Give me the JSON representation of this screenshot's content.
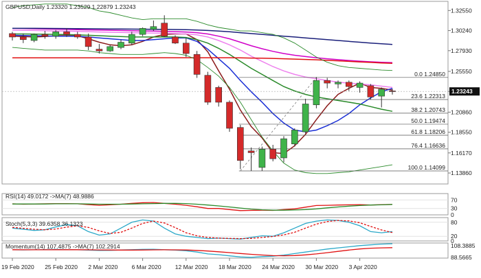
{
  "header": {
    "main": "GBPUSD,Daily  1.23320 1.23529 1.22879 1.23243",
    "rsi": "RSI(14) 49.0172  ->MA(7) 48.9886",
    "stoch": "Stoch(5,3,3) 39.6358 36.1323",
    "momentum": "Momentum(14) 107.4875  ->MA(7) 102.2914"
  },
  "colors": {
    "bull": "#3fb34a",
    "bear": "#d42a2a",
    "sma5": "#8b1a1a",
    "sma10": "#1a2fd6",
    "sma20": "#2a8a2a",
    "sma30": "#ee82ee",
    "sma55": "#d000c8",
    "sma100": "#1a1f7a",
    "sma200": "#e01010",
    "bb": "#2a8a2a",
    "accent": "#e00000"
  },
  "chart_data": [
    {
      "type": "candlestick",
      "title": "GBPUSD,Daily",
      "ylim": [
        1.126,
        1.336
      ],
      "y_ticks": [
        "1.32550",
        "1.30240",
        "1.27930",
        "1.25550",
        "1.23243",
        "1.20860",
        "1.18550",
        "1.16170",
        "1.13860"
      ],
      "x_ticks": [
        "19 Feb 2020",
        "25 Feb 2020",
        "2 Mar 2020",
        "6 Mar 2020",
        "12 Mar 2020",
        "18 Mar 2020",
        "24 Mar 2020",
        "30 Mar 2020",
        "3 Apr 2020"
      ],
      "last_price": "1.23243",
      "candles": [
        {
          "o": 1.299,
          "h": 1.301,
          "l": 1.291,
          "c": 1.295
        },
        {
          "o": 1.295,
          "h": 1.299,
          "l": 1.288,
          "c": 1.292
        },
        {
          "o": 1.291,
          "h": 1.299,
          "l": 1.289,
          "c": 1.298
        },
        {
          "o": 1.298,
          "h": 1.302,
          "l": 1.293,
          "c": 1.296
        },
        {
          "o": 1.296,
          "h": 1.303,
          "l": 1.293,
          "c": 1.301
        },
        {
          "o": 1.301,
          "h": 1.305,
          "l": 1.295,
          "c": 1.298
        },
        {
          "o": 1.298,
          "h": 1.301,
          "l": 1.293,
          "c": 1.295
        },
        {
          "o": 1.295,
          "h": 1.299,
          "l": 1.28,
          "c": 1.284
        },
        {
          "o": 1.281,
          "h": 1.287,
          "l": 1.276,
          "c": 1.279
        },
        {
          "o": 1.279,
          "h": 1.286,
          "l": 1.278,
          "c": 1.284
        },
        {
          "o": 1.283,
          "h": 1.292,
          "l": 1.281,
          "c": 1.289
        },
        {
          "o": 1.288,
          "h": 1.301,
          "l": 1.286,
          "c": 1.298
        },
        {
          "o": 1.298,
          "h": 1.306,
          "l": 1.296,
          "c": 1.305
        },
        {
          "o": 1.304,
          "h": 1.314,
          "l": 1.302,
          "c": 1.307
        },
        {
          "o": 1.311,
          "h": 1.32,
          "l": 1.295,
          "c": 1.296
        },
        {
          "o": 1.295,
          "h": 1.297,
          "l": 1.287,
          "c": 1.288
        },
        {
          "o": 1.288,
          "h": 1.294,
          "l": 1.272,
          "c": 1.276
        },
        {
          "o": 1.275,
          "h": 1.279,
          "l": 1.248,
          "c": 1.252
        },
        {
          "o": 1.251,
          "h": 1.255,
          "l": 1.217,
          "c": 1.22
        },
        {
          "o": 1.237,
          "h": 1.239,
          "l": 1.215,
          "c": 1.22
        },
        {
          "o": 1.22,
          "h": 1.222,
          "l": 1.186,
          "c": 1.19
        },
        {
          "o": 1.191,
          "h": 1.194,
          "l": 1.143,
          "c": 1.153
        },
        {
          "o": 1.164,
          "h": 1.168,
          "l": 1.141,
          "c": 1.162
        },
        {
          "o": 1.145,
          "h": 1.169,
          "l": 1.141,
          "c": 1.166
        },
        {
          "o": 1.166,
          "h": 1.171,
          "l": 1.152,
          "c": 1.155
        },
        {
          "o": 1.156,
          "h": 1.181,
          "l": 1.151,
          "c": 1.178
        },
        {
          "o": 1.172,
          "h": 1.19,
          "l": 1.169,
          "c": 1.188
        },
        {
          "o": 1.186,
          "h": 1.224,
          "l": 1.184,
          "c": 1.218
        },
        {
          "o": 1.217,
          "h": 1.249,
          "l": 1.213,
          "c": 1.245
        },
        {
          "o": 1.245,
          "h": 1.248,
          "l": 1.236,
          "c": 1.242
        },
        {
          "o": 1.241,
          "h": 1.245,
          "l": 1.236,
          "c": 1.243
        },
        {
          "o": 1.243,
          "h": 1.245,
          "l": 1.233,
          "c": 1.238
        },
        {
          "o": 1.237,
          "h": 1.244,
          "l": 1.231,
          "c": 1.242
        },
        {
          "o": 1.239,
          "h": 1.241,
          "l": 1.223,
          "c": 1.226
        },
        {
          "o": 1.227,
          "h": 1.237,
          "l": 1.214,
          "c": 1.235
        },
        {
          "o": 1.233,
          "h": 1.2353,
          "l": 1.2288,
          "c": 1.2324
        }
      ],
      "moving_averages": [
        {
          "name": "SMA5",
          "color": "#8b1a1a",
          "values": [
            1.296,
            1.2955,
            1.295,
            1.2955,
            1.2965,
            1.2965,
            1.2965,
            1.293,
            1.289,
            1.286,
            1.285,
            1.286,
            1.29,
            1.295,
            1.298,
            1.2985,
            1.2985,
            1.292,
            1.278,
            1.256,
            1.235,
            1.211,
            1.192,
            1.179,
            1.162,
            1.161,
            1.17,
            1.183,
            1.2,
            1.216,
            1.229,
            1.236,
            1.242,
            1.237,
            1.236,
            1.234
          ]
        },
        {
          "name": "SMA10",
          "color": "#1a2fd6",
          "values": [
            1.297,
            1.2968,
            1.2965,
            1.2962,
            1.296,
            1.296,
            1.2958,
            1.295,
            1.294,
            1.293,
            1.292,
            1.291,
            1.291,
            1.292,
            1.293,
            1.294,
            1.294,
            1.29,
            1.281,
            1.27,
            1.259,
            1.245,
            1.232,
            1.22,
            1.207,
            1.196,
            1.188,
            1.186,
            1.188,
            1.193,
            1.199,
            1.207,
            1.217,
            1.225,
            1.232,
            1.236
          ]
        },
        {
          "name": "SMA20",
          "color": "#2a8a2a",
          "values": [
            1.2985,
            1.2985,
            1.2984,
            1.2982,
            1.298,
            1.2978,
            1.2975,
            1.297,
            1.2965,
            1.296,
            1.2955,
            1.295,
            1.295,
            1.295,
            1.2952,
            1.295,
            1.2945,
            1.292,
            1.288,
            1.282,
            1.275,
            1.267,
            1.259,
            1.252,
            1.245,
            1.238,
            1.233,
            1.229,
            1.226,
            1.224,
            1.222,
            1.22,
            1.218,
            1.215,
            1.212,
            1.2095
          ]
        },
        {
          "name": "SMA30",
          "color": "#ee82ee",
          "values": [
            1.303,
            1.3028,
            1.3025,
            1.3022,
            1.302,
            1.3018,
            1.3015,
            1.3012,
            1.3008,
            1.3005,
            1.3002,
            1.3,
            1.2998,
            1.2996,
            1.2994,
            1.299,
            1.2985,
            1.2975,
            1.295,
            1.291,
            1.286,
            1.28,
            1.273,
            1.267,
            1.261,
            1.256,
            1.252,
            1.249,
            1.247,
            1.245,
            1.243,
            1.242,
            1.241,
            1.24,
            1.2385,
            1.237
          ]
        },
        {
          "name": "SMA55",
          "color": "#d000c8",
          "values": [
            1.305,
            1.3048,
            1.3045,
            1.3042,
            1.304,
            1.3038,
            1.3035,
            1.3032,
            1.303,
            1.3028,
            1.3025,
            1.3022,
            1.302,
            1.3018,
            1.3015,
            1.3012,
            1.3008,
            1.3,
            1.2985,
            1.296,
            1.293,
            1.289,
            1.285,
            1.2815,
            1.2785,
            1.276,
            1.274,
            1.2725,
            1.2712,
            1.27,
            1.269,
            1.268,
            1.2672,
            1.2665,
            1.266,
            1.2655
          ]
        },
        {
          "name": "SMA100",
          "color": "#1a1f7a",
          "values": [
            1.305,
            1.305,
            1.305,
            1.3049,
            1.3048,
            1.3047,
            1.3046,
            1.3045,
            1.3044,
            1.3043,
            1.3042,
            1.3041,
            1.304,
            1.3039,
            1.3038,
            1.3036,
            1.3034,
            1.303,
            1.3025,
            1.3018,
            1.301,
            1.3,
            1.299,
            1.298,
            1.297,
            1.296,
            1.295,
            1.294,
            1.293,
            1.292,
            1.291,
            1.29,
            1.289,
            1.288,
            1.2872,
            1.2865
          ]
        },
        {
          "name": "SMA200",
          "color": "#e01010",
          "values": [
            1.271,
            1.271,
            1.271,
            1.271,
            1.271,
            1.271,
            1.271,
            1.271,
            1.271,
            1.271,
            1.271,
            1.271,
            1.2712,
            1.2712,
            1.2712,
            1.2712,
            1.2712,
            1.2712,
            1.2712,
            1.2712,
            1.2712,
            1.271,
            1.2708,
            1.2706,
            1.2704,
            1.27,
            1.2696,
            1.2692,
            1.2688,
            1.2682,
            1.2676,
            1.267,
            1.2664,
            1.2658,
            1.2652,
            1.2648
          ]
        },
        {
          "name": "BB upper",
          "color": "#2a8a2a",
          "values": [
            1.329,
            1.331,
            1.332,
            1.333,
            1.333,
            1.333,
            1.331,
            1.329,
            1.325,
            1.323,
            1.32,
            1.317,
            1.315,
            1.316,
            1.316,
            1.316,
            1.316,
            1.313,
            1.309,
            1.306,
            1.304,
            1.302,
            1.302,
            1.3,
            1.298,
            1.294,
            1.288,
            1.28,
            1.272,
            1.266,
            1.262,
            1.26,
            1.259,
            1.258,
            1.257,
            1.2565
          ]
        },
        {
          "name": "BB lower",
          "color": "#2a8a2a",
          "values": [
            1.283,
            1.282,
            1.281,
            1.28,
            1.28,
            1.28,
            1.28,
            1.279,
            1.277,
            1.276,
            1.275,
            1.275,
            1.275,
            1.276,
            1.277,
            1.276,
            1.274,
            1.269,
            1.26,
            1.25,
            1.237,
            1.22,
            1.2,
            1.18,
            1.164,
            1.15,
            1.142,
            1.139,
            1.138,
            1.138,
            1.139,
            1.14,
            1.142,
            1.144,
            1.146,
            1.148
          ]
        }
      ],
      "fibonacci": [
        {
          "label": "0.0 1.24850",
          "price": 1.2485
        },
        {
          "label": "23.6 1.22313",
          "price": 1.22313
        },
        {
          "label": "38.2 1.20743",
          "price": 1.20743
        },
        {
          "label": "50.0 1.19474",
          "price": 1.19474
        },
        {
          "label": "61.8 1.18206",
          "price": 1.18206
        },
        {
          "label": "76.4 1.16636",
          "price": 1.16636
        },
        {
          "label": "100.0 1.14099",
          "price": 1.14099
        }
      ]
    },
    {
      "type": "line",
      "title": "RSI(14) 49.0172  ->MA(7) 48.9886",
      "ylim": [
        0,
        100
      ],
      "y_ticks": [
        "70",
        "30",
        "0"
      ],
      "series": [
        {
          "name": "RSI(14)",
          "color": "#e01010",
          "values": [
            52,
            50,
            51,
            52,
            53,
            53,
            52,
            48,
            45,
            47,
            50,
            54,
            57,
            58,
            54,
            50,
            45,
            38,
            30,
            30,
            25,
            20,
            21,
            22,
            21,
            25,
            28,
            36,
            44,
            45,
            46,
            47,
            48,
            46,
            48,
            49
          ]
        },
        {
          "name": "MA(7)",
          "color": "#2a8a2a",
          "values": [
            51,
            51,
            51,
            51,
            52,
            52,
            52,
            51,
            50,
            50,
            50,
            51,
            52,
            53,
            54,
            54,
            53,
            50,
            46,
            42,
            37,
            32,
            27,
            24,
            22,
            22,
            23,
            25,
            28,
            33,
            37,
            41,
            44,
            46,
            47,
            49
          ]
        }
      ]
    },
    {
      "type": "line",
      "title": "Stoch(5,3,3) 39.6358 36.1323",
      "ylim": [
        0,
        100
      ],
      "y_ticks": [
        "80",
        "20",
        "0"
      ],
      "series": [
        {
          "name": "%K",
          "color": "#2aa8c8",
          "values": [
            55,
            50,
            45,
            48,
            60,
            70,
            65,
            40,
            25,
            30,
            55,
            80,
            90,
            85,
            55,
            30,
            20,
            15,
            10,
            12,
            10,
            8,
            15,
            22,
            20,
            35,
            55,
            75,
            85,
            90,
            88,
            80,
            65,
            40,
            35,
            40
          ]
        },
        {
          "name": "%D",
          "color": "#e01010",
          "values": [
            58,
            54,
            50,
            48,
            51,
            59,
            65,
            58,
            43,
            32,
            37,
            55,
            75,
            85,
            77,
            57,
            35,
            22,
            15,
            12,
            11,
            10,
            11,
            15,
            19,
            26,
            37,
            55,
            72,
            83,
            88,
            86,
            78,
            62,
            47,
            36
          ]
        }
      ]
    },
    {
      "type": "line",
      "title": "Momentum(14) 107.4875  ->MA(7) 102.2914",
      "y_ticks": [
        "108.3885",
        "88.5665"
      ],
      "series": [
        {
          "name": "Momentum(14)",
          "color": "#2aa8c8",
          "values": [
            99.5,
            99.3,
            99.5,
            99.8,
            100.0,
            99.8,
            99.5,
            99.0,
            98.6,
            98.8,
            99.2,
            99.6,
            100.0,
            100.2,
            99.6,
            99.0,
            98.2,
            96.5,
            94.0,
            93.0,
            91.5,
            90.0,
            89.5,
            90.5,
            91.0,
            92.5,
            94.5,
            96.5,
            98.5,
            100.5,
            102.0,
            103.5,
            105.0,
            106.0,
            107.0,
            107.49
          ]
        },
        {
          "name": "MA(7)",
          "color": "#e01010",
          "values": [
            99.6,
            99.5,
            99.5,
            99.5,
            99.6,
            99.6,
            99.6,
            99.5,
            99.3,
            99.2,
            99.1,
            99.1,
            99.2,
            99.4,
            99.5,
            99.4,
            99.2,
            98.7,
            97.9,
            96.9,
            95.8,
            94.6,
            93.5,
            92.6,
            91.8,
            91.6,
            91.9,
            92.8,
            94.0,
            95.7,
            97.4,
            99.1,
            100.6,
            101.6,
            102.0,
            102.29
          ]
        }
      ]
    }
  ]
}
